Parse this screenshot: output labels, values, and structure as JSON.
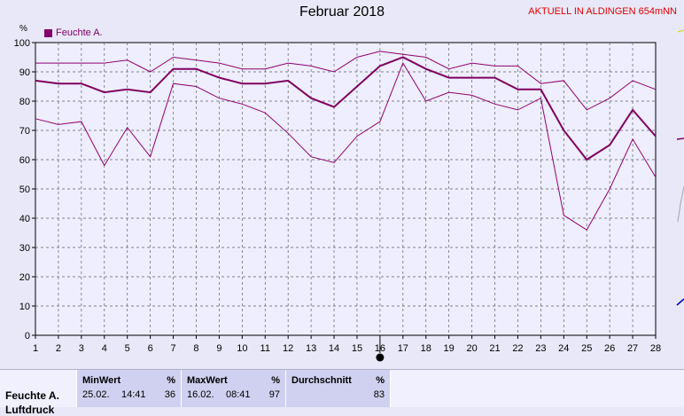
{
  "header": {
    "title": "Februar 2018",
    "station": "AKTUELL IN ALDINGEN 654mNN"
  },
  "legend": {
    "label": "Feuchte A."
  },
  "axis": {
    "unit": "%"
  },
  "chart_data": {
    "type": "line",
    "title": "Februar 2018",
    "ylabel": "%",
    "xlim": [
      1,
      28
    ],
    "ylim": [
      0,
      100
    ],
    "x": [
      1,
      2,
      3,
      4,
      5,
      6,
      7,
      8,
      9,
      10,
      11,
      12,
      13,
      14,
      15,
      16,
      17,
      18,
      19,
      20,
      21,
      22,
      23,
      24,
      25,
      26,
      27,
      28
    ],
    "xticks": [
      1,
      2,
      3,
      4,
      5,
      6,
      7,
      8,
      9,
      10,
      11,
      12,
      13,
      14,
      15,
      16,
      17,
      18,
      19,
      20,
      21,
      22,
      23,
      24,
      25,
      26,
      27,
      28
    ],
    "yticks": [
      0,
      10,
      20,
      30,
      40,
      50,
      60,
      70,
      80,
      90,
      100
    ],
    "grid": true,
    "legend_position": "top-left",
    "series": [
      {
        "name": "Feuchte A.",
        "role": "avg",
        "values": [
          87,
          86,
          86,
          83,
          84,
          83,
          91,
          91,
          88,
          86,
          86,
          87,
          81,
          78,
          85,
          92,
          95,
          91,
          88,
          88,
          88,
          84,
          84,
          70,
          60,
          65,
          77,
          68
        ]
      },
      {
        "role": "max",
        "values": [
          93,
          93,
          93,
          93,
          94,
          90,
          95,
          94,
          93,
          91,
          91,
          93,
          92,
          90,
          95,
          97,
          96,
          95,
          91,
          93,
          92,
          92,
          86,
          87,
          77,
          81,
          87,
          84
        ]
      },
      {
        "role": "min",
        "values": [
          74,
          72,
          73,
          58,
          71,
          61,
          86,
          85,
          81,
          79,
          76,
          69,
          61,
          59,
          68,
          73,
          93,
          80,
          83,
          82,
          79,
          77,
          81,
          41,
          36,
          50,
          67,
          54
        ]
      }
    ],
    "marker_day": 16,
    "colors": {
      "avg": "#800060",
      "band": "#900070",
      "grid": "#606060",
      "plot_bg": "#eeeeff"
    }
  },
  "stats": {
    "row_label": "Feuchte A.",
    "row_label2": "Luftdruck",
    "min": {
      "header": "MinWert",
      "unit": "%",
      "date": "25.02.",
      "time": "14:41",
      "value": "36"
    },
    "max": {
      "header": "MaxWert",
      "unit": "%",
      "date": "16.02.",
      "time": "08:41",
      "value": "97"
    },
    "avg": {
      "header": "Durchschnitt",
      "unit": "%",
      "value": "83"
    }
  }
}
